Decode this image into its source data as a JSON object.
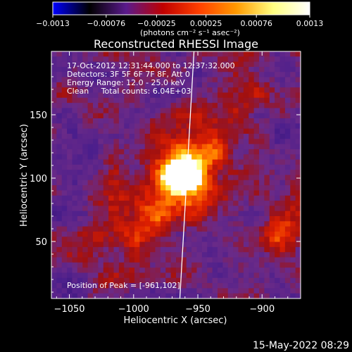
{
  "chart_data": {
    "type": "heatmap",
    "title": "Reconstructed RHESSI Image",
    "xlabel": "Heliocentric X (arcsec)",
    "ylabel": "Heliocentric Y (arcsec)",
    "xlim": [
      -1064,
      -870
    ],
    "ylim": [
      5,
      200
    ],
    "x_ticks": [
      -1050,
      -1000,
      -950,
      -900
    ],
    "x_tick_labels": [
      "−1050",
      "−1000",
      "−950",
      "−900"
    ],
    "y_ticks": [
      50,
      100,
      150
    ],
    "y_tick_labels": [
      "50",
      "100",
      "150"
    ],
    "colorbar": {
      "min": -0.0013,
      "max": 0.0013,
      "ticks": [
        -0.0013,
        -0.00076,
        -0.00025,
        0.00025,
        0.00076,
        0.0013
      ],
      "tick_labels": [
        "−0.0013",
        "−0.00076",
        "−0.00025",
        "0.00025",
        "0.00076",
        "0.0013"
      ],
      "unit_label": "(photons cm⁻² s⁻¹ asec⁻²)",
      "colormap": [
        "#0000ff",
        "#000000",
        "#5a1a8c",
        "#c00000",
        "#ff4000",
        "#ff9a00",
        "#ffff80",
        "#ffffff"
      ]
    },
    "annotations": [
      "17-Oct-2012 12:31:44.000 to 12:37:32.000",
      "Detectors: 3F 5F 6F 7F 8F, Att 0",
      "Energy Range: 12.0 - 25.0 keV",
      "Clean     Total counts: 6.04E+03"
    ],
    "peak_label": "Position of Peak = [-961,102]",
    "peak": {
      "x": -961,
      "y": 102
    },
    "limb_line": {
      "x_top": -953,
      "y_top": 200,
      "x_bottom": -964,
      "y_bottom": 5,
      "color": "#ffffff"
    },
    "grid": false,
    "timestamp": "15-May-2022 08:29"
  }
}
